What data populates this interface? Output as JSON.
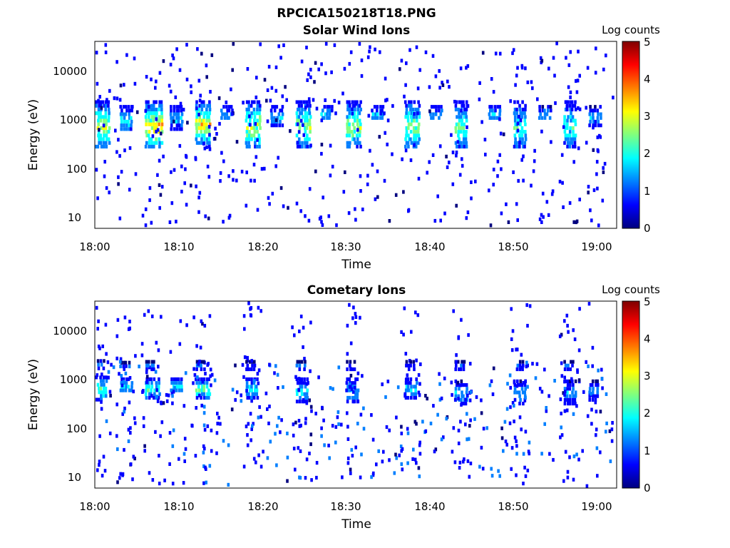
{
  "figure": {
    "filename_title": "RPCICA150218T18.PNG"
  },
  "colormap": [
    "#00007f",
    "#0000ff",
    "#007fff",
    "#00ffff",
    "#7fff7f",
    "#ffff00",
    "#ff7f00",
    "#ff0000",
    "#7f0000"
  ],
  "chart_data": [
    {
      "type": "heatmap",
      "title": "Solar Wind Ions",
      "xlabel": "Time",
      "ylabel": "Energy (eV)",
      "y_scale": "log",
      "ylim": [
        6,
        40000
      ],
      "xlim": [
        "18:00",
        "19:02"
      ],
      "x_ticks": [
        "18:00",
        "18:10",
        "18:20",
        "18:30",
        "18:40",
        "18:50",
        "19:00"
      ],
      "y_ticks": [
        "10",
        "100",
        "1000",
        "10000"
      ],
      "colorbar": {
        "label": "Log counts",
        "range": [
          0,
          5
        ],
        "ticks": [
          "0",
          "1",
          "2",
          "3",
          "4",
          "5"
        ]
      },
      "blobs": [
        {
          "t": "18:00",
          "e_low": 300,
          "e_high": 2500,
          "peak": 3.0
        },
        {
          "t": "18:03",
          "e_low": 600,
          "e_high": 2000,
          "peak": 2.0
        },
        {
          "t": "18:06",
          "e_low": 300,
          "e_high": 2500,
          "peak": 3.5
        },
        {
          "t": "18:09",
          "e_low": 700,
          "e_high": 2000,
          "peak": 1.8
        },
        {
          "t": "18:12",
          "e_low": 350,
          "e_high": 2500,
          "peak": 3.4
        },
        {
          "t": "18:15",
          "e_low": 1000,
          "e_high": 2000,
          "peak": 1.8
        },
        {
          "t": "18:18",
          "e_low": 300,
          "e_high": 2500,
          "peak": 3.0
        },
        {
          "t": "18:21",
          "e_low": 800,
          "e_high": 2000,
          "peak": 1.8
        },
        {
          "t": "18:24",
          "e_low": 300,
          "e_high": 2500,
          "peak": 2.8
        },
        {
          "t": "18:27",
          "e_low": 1000,
          "e_high": 2000,
          "peak": 1.8
        },
        {
          "t": "18:30",
          "e_low": 300,
          "e_high": 2500,
          "peak": 2.8
        },
        {
          "t": "18:33",
          "e_low": 1000,
          "e_high": 2000,
          "peak": 1.8
        },
        {
          "t": "18:37",
          "e_low": 300,
          "e_high": 2500,
          "peak": 2.6
        },
        {
          "t": "18:40",
          "e_low": 1000,
          "e_high": 2000,
          "peak": 1.8
        },
        {
          "t": "18:43",
          "e_low": 280,
          "e_high": 2500,
          "peak": 2.4
        },
        {
          "t": "18:47",
          "e_low": 1000,
          "e_high": 2000,
          "peak": 1.8
        },
        {
          "t": "18:50",
          "e_low": 280,
          "e_high": 2500,
          "peak": 2.2
        },
        {
          "t": "18:53",
          "e_low": 1000,
          "e_high": 2000,
          "peak": 1.6
        },
        {
          "t": "18:56",
          "e_low": 280,
          "e_high": 2500,
          "peak": 2.2
        },
        {
          "t": "18:59",
          "e_low": 800,
          "e_high": 2000,
          "peak": 1.6
        }
      ]
    },
    {
      "type": "heatmap",
      "title": "Cometary Ions",
      "xlabel": "Time",
      "ylabel": "Energy (eV)",
      "y_scale": "log",
      "ylim": [
        6,
        40000
      ],
      "xlim": [
        "18:00",
        "19:02"
      ],
      "x_ticks": [
        "18:00",
        "18:10",
        "18:20",
        "18:30",
        "18:40",
        "18:50",
        "19:00"
      ],
      "y_ticks": [
        "10",
        "100",
        "1000",
        "10000"
      ],
      "colorbar": {
        "label": "Log counts",
        "range": [
          0,
          5
        ],
        "ticks": [
          "0",
          "1",
          "2",
          "3",
          "4",
          "5"
        ]
      },
      "blobs": [
        {
          "t": "18:00",
          "e_low": 400,
          "e_high": 1200,
          "peak": 2.4
        },
        {
          "t": "18:00",
          "e_low": 1700,
          "e_high": 2600,
          "peak": 1.3
        },
        {
          "t": "18:03",
          "e_low": 550,
          "e_high": 1100,
          "peak": 2.0
        },
        {
          "t": "18:03",
          "e_low": 1700,
          "e_high": 2400,
          "peak": 1.2
        },
        {
          "t": "18:06",
          "e_low": 450,
          "e_high": 1100,
          "peak": 2.5
        },
        {
          "t": "18:06",
          "e_low": 1700,
          "e_high": 2500,
          "peak": 1.4
        },
        {
          "t": "18:09",
          "e_low": 550,
          "e_high": 1100,
          "peak": 2.0
        },
        {
          "t": "18:12",
          "e_low": 450,
          "e_high": 1100,
          "peak": 2.6
        },
        {
          "t": "18:12",
          "e_low": 1700,
          "e_high": 2500,
          "peak": 1.4
        },
        {
          "t": "18:18",
          "e_low": 450,
          "e_high": 1100,
          "peak": 2.2
        },
        {
          "t": "18:18",
          "e_low": 1700,
          "e_high": 2500,
          "peak": 1.2
        },
        {
          "t": "18:24",
          "e_low": 350,
          "e_high": 1100,
          "peak": 2.0
        },
        {
          "t": "18:24",
          "e_low": 1700,
          "e_high": 2500,
          "peak": 1.2
        },
        {
          "t": "18:30",
          "e_low": 350,
          "e_high": 1100,
          "peak": 1.8
        },
        {
          "t": "18:30",
          "e_low": 1700,
          "e_high": 2500,
          "peak": 1.1
        },
        {
          "t": "18:37",
          "e_low": 450,
          "e_high": 1100,
          "peak": 2.0
        },
        {
          "t": "18:37",
          "e_low": 1700,
          "e_high": 2500,
          "peak": 1.2
        },
        {
          "t": "18:43",
          "e_low": 350,
          "e_high": 1000,
          "peak": 1.6
        },
        {
          "t": "18:43",
          "e_low": 1700,
          "e_high": 2500,
          "peak": 1.1
        },
        {
          "t": "18:50",
          "e_low": 350,
          "e_high": 1000,
          "peak": 1.6
        },
        {
          "t": "18:50",
          "e_low": 1700,
          "e_high": 2500,
          "peak": 1.1
        },
        {
          "t": "18:56",
          "e_low": 350,
          "e_high": 1000,
          "peak": 1.6
        },
        {
          "t": "18:56",
          "e_low": 1700,
          "e_high": 2500,
          "peak": 1.1
        },
        {
          "t": "18:59",
          "e_low": 400,
          "e_high": 1000,
          "peak": 1.4
        }
      ]
    }
  ]
}
